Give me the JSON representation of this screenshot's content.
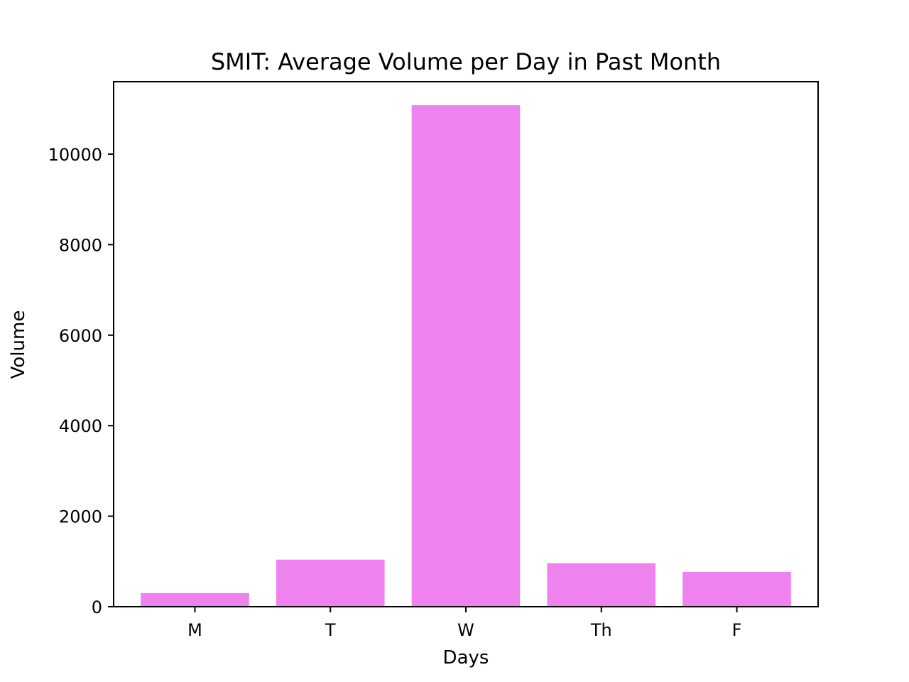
{
  "chart_data": {
    "type": "bar",
    "title": "SMIT: Average Volume per Day in Past Month",
    "xlabel": "Days",
    "ylabel": "Volume",
    "categories": [
      "M",
      "T",
      "W",
      "Th",
      "F"
    ],
    "values": [
      300,
      1040,
      11080,
      960,
      770
    ],
    "ylim": [
      0,
      11600
    ],
    "yticks": [
      0,
      2000,
      4000,
      6000,
      8000,
      10000
    ],
    "bar_color": "#ee82ee",
    "grid": false,
    "legend": "none"
  }
}
